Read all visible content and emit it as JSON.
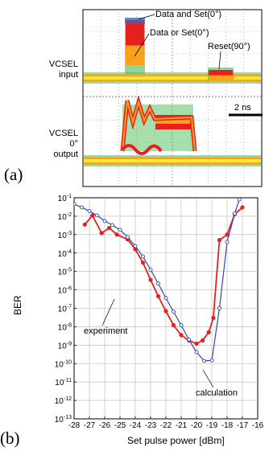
{
  "panel_a": {
    "tag": "(a)",
    "input_label": [
      "VCSEL",
      "input"
    ],
    "output_label": [
      "VCSEL",
      "0°",
      "output"
    ],
    "annotations": {
      "data_and_set": "Data and Set(0°)",
      "data_or_set": "Data or Set(0°)",
      "reset": "Reset(90°)",
      "scale": "2 ns"
    },
    "colors": {
      "trace_red": "#e8201c",
      "trace_orange": "#f7a21a",
      "trace_yellow": "#f6e73a",
      "trace_green": "#39b54a",
      "trace_blue": "#3b5bd9"
    }
  },
  "panel_b": {
    "tag": "(b)",
    "exp_label": "experiment",
    "calc_label": "calculation"
  },
  "chart_data": {
    "type": "line",
    "xlabel": "Set pulse power [dBm]",
    "ylabel": "BER",
    "xlim": [
      -28,
      -16
    ],
    "ylim_exponent": [
      -13,
      -1
    ],
    "log_y": true,
    "grid": true,
    "x_ticks": [
      "-28",
      "-27",
      "-26",
      "-25",
      "-24",
      "-23",
      "-22",
      "-21",
      "-20",
      "-19",
      "-18",
      "-17",
      "-16"
    ],
    "y_ticks": [
      "10-1",
      "10-2",
      "10-3",
      "10-4",
      "10-5",
      "10-6",
      "10-7",
      "10-8",
      "10-9",
      "10-10",
      "10-11",
      "10-12",
      "10-13"
    ],
    "series": [
      {
        "name": "experiment",
        "color": "#e8201c",
        "x": [
          -27.3,
          -26.8,
          -26.2,
          -25.7,
          -25.2,
          -24.5,
          -24.0,
          -23.5,
          -23.0,
          -22.5,
          -22.0,
          -21.5,
          -21.0,
          -20.5,
          -20.0,
          -19.6,
          -19.2,
          -18.9,
          -18.5,
          -18.0,
          -17.5,
          -17.0
        ],
        "y": [
          0.0035,
          0.011,
          0.0012,
          0.0023,
          0.001,
          0.00055,
          0.00016,
          3e-05,
          3.5e-06,
          4.5e-07,
          7e-08,
          1.2e-08,
          3.5e-09,
          1.8e-09,
          1.2e-09,
          1.8e-09,
          5e-09,
          3e-08,
          0.0005,
          0.001,
          0.013,
          0.03
        ]
      },
      {
        "name": "calculation",
        "color": "#3146b8",
        "x": [
          -28.0,
          -27.5,
          -27.0,
          -26.5,
          -26.0,
          -25.5,
          -25.0,
          -24.5,
          -24.0,
          -23.5,
          -23.0,
          -22.5,
          -22.0,
          -21.5,
          -21.0,
          -20.5,
          -20.0,
          -19.5,
          -19.0,
          -18.5,
          -18.0,
          -17.5,
          -17.2,
          -16.8
        ],
        "y": [
          0.045,
          0.03,
          0.019,
          0.011,
          0.0055,
          0.0033,
          0.0018,
          0.00073,
          0.00024,
          6.5e-05,
          1.25e-05,
          2.2e-06,
          3.6e-07,
          6.5e-08,
          1.2e-08,
          2e-09,
          4.2e-10,
          1.4e-10,
          1.5e-10,
          1e-07,
          0.0004,
          0.014,
          0.08,
          1.5
        ]
      }
    ]
  }
}
